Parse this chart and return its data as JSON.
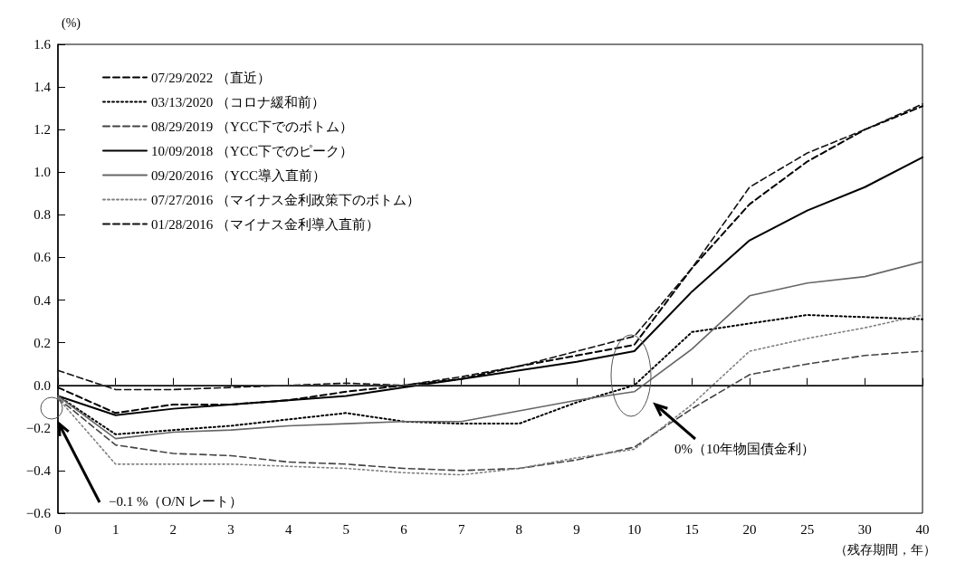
{
  "chart_data": {
    "type": "line",
    "ylabel": "(%)",
    "xlabel": "（残存期間，年）",
    "categories": [
      "0",
      "1",
      "2",
      "3",
      "4",
      "5",
      "6",
      "7",
      "8",
      "9",
      "10",
      "15",
      "20",
      "25",
      "30",
      "40"
    ],
    "ylim": [
      -0.6,
      1.6
    ],
    "yticks": [
      {
        "value": -0.6,
        "label": "−0.6"
      },
      {
        "value": -0.4,
        "label": "−0.4"
      },
      {
        "value": -0.2,
        "label": "−0.2"
      },
      {
        "value": 0,
        "label": "0.0"
      },
      {
        "value": 0.2,
        "label": "0.2"
      },
      {
        "value": 0.4,
        "label": "0.4"
      },
      {
        "value": 0.6,
        "label": "0.6"
      },
      {
        "value": 0.8,
        "label": "0.8"
      },
      {
        "value": 1,
        "label": "1.0"
      },
      {
        "value": 1.2,
        "label": "1.2"
      },
      {
        "value": 1.4,
        "label": "1.4"
      },
      {
        "value": 1.6,
        "label": "1.6"
      }
    ],
    "grid": false,
    "legend": "top left",
    "marker": "none",
    "series": [
      {
        "name": "07/29/2022 （直近）",
        "color": "#000000",
        "line_style": "dashed",
        "values": [
          -0.01,
          -0.13,
          -0.09,
          -0.09,
          -0.07,
          -0.03,
          0.0,
          0.03,
          0.09,
          0.14,
          0.19,
          0.55,
          0.85,
          1.05,
          1.2,
          1.31
        ]
      },
      {
        "name": "03/13/2020 （コロナ緩和前）",
        "color": "#000000",
        "line_style": "dotted",
        "values": [
          -0.05,
          -0.23,
          -0.21,
          -0.19,
          -0.16,
          -0.13,
          -0.17,
          -0.18,
          -0.18,
          -0.08,
          0.0,
          0.25,
          0.29,
          0.33,
          0.32,
          0.31
        ]
      },
      {
        "name": "08/29/2019 （YCC下でのボトム）",
        "color": "#444444",
        "line_style": "dashed",
        "values": [
          -0.06,
          -0.28,
          -0.32,
          -0.33,
          -0.36,
          -0.37,
          -0.39,
          -0.4,
          -0.39,
          -0.35,
          -0.29,
          -0.11,
          0.05,
          0.1,
          0.14,
          0.16
        ]
      },
      {
        "name": "10/09/2018 （YCC下でのピーク）",
        "color": "#000000",
        "line_style": "solid",
        "values": [
          -0.05,
          -0.14,
          -0.11,
          -0.09,
          -0.07,
          -0.05,
          -0.01,
          0.03,
          0.07,
          0.11,
          0.16,
          0.44,
          0.68,
          0.82,
          0.93,
          1.07
        ]
      },
      {
        "name": "09/20/2016 （YCC導入直前）",
        "color": "#666666",
        "line_style": "solid",
        "values": [
          -0.05,
          -0.25,
          -0.22,
          -0.21,
          -0.19,
          -0.18,
          -0.17,
          -0.17,
          -0.12,
          -0.07,
          -0.03,
          0.17,
          0.42,
          0.48,
          0.51,
          0.58
        ]
      },
      {
        "name": "07/27/2016 （マイナス金利政策下のボトム）",
        "color": "#808080",
        "line_style": "dotted",
        "values": [
          -0.06,
          -0.37,
          -0.37,
          -0.37,
          -0.38,
          -0.39,
          -0.41,
          -0.42,
          -0.39,
          -0.34,
          -0.3,
          -0.09,
          0.16,
          0.22,
          0.27,
          0.33
        ]
      },
      {
        "name": "01/28/2016 （マイナス金利導入直前）",
        "color": "#111111",
        "line_style": "dashed",
        "values": [
          0.07,
          -0.02,
          -0.02,
          -0.01,
          0.0,
          0.01,
          0.0,
          0.04,
          0.09,
          0.16,
          0.23,
          0.55,
          0.93,
          1.09,
          1.2,
          1.32
        ]
      }
    ],
    "ref_lines": [
      {
        "axis": "y",
        "value": 0,
        "color": "#555555"
      }
    ],
    "annotations": [
      "−0.1 %（O/N レート）",
      "0%（10年物国債金利）"
    ]
  }
}
